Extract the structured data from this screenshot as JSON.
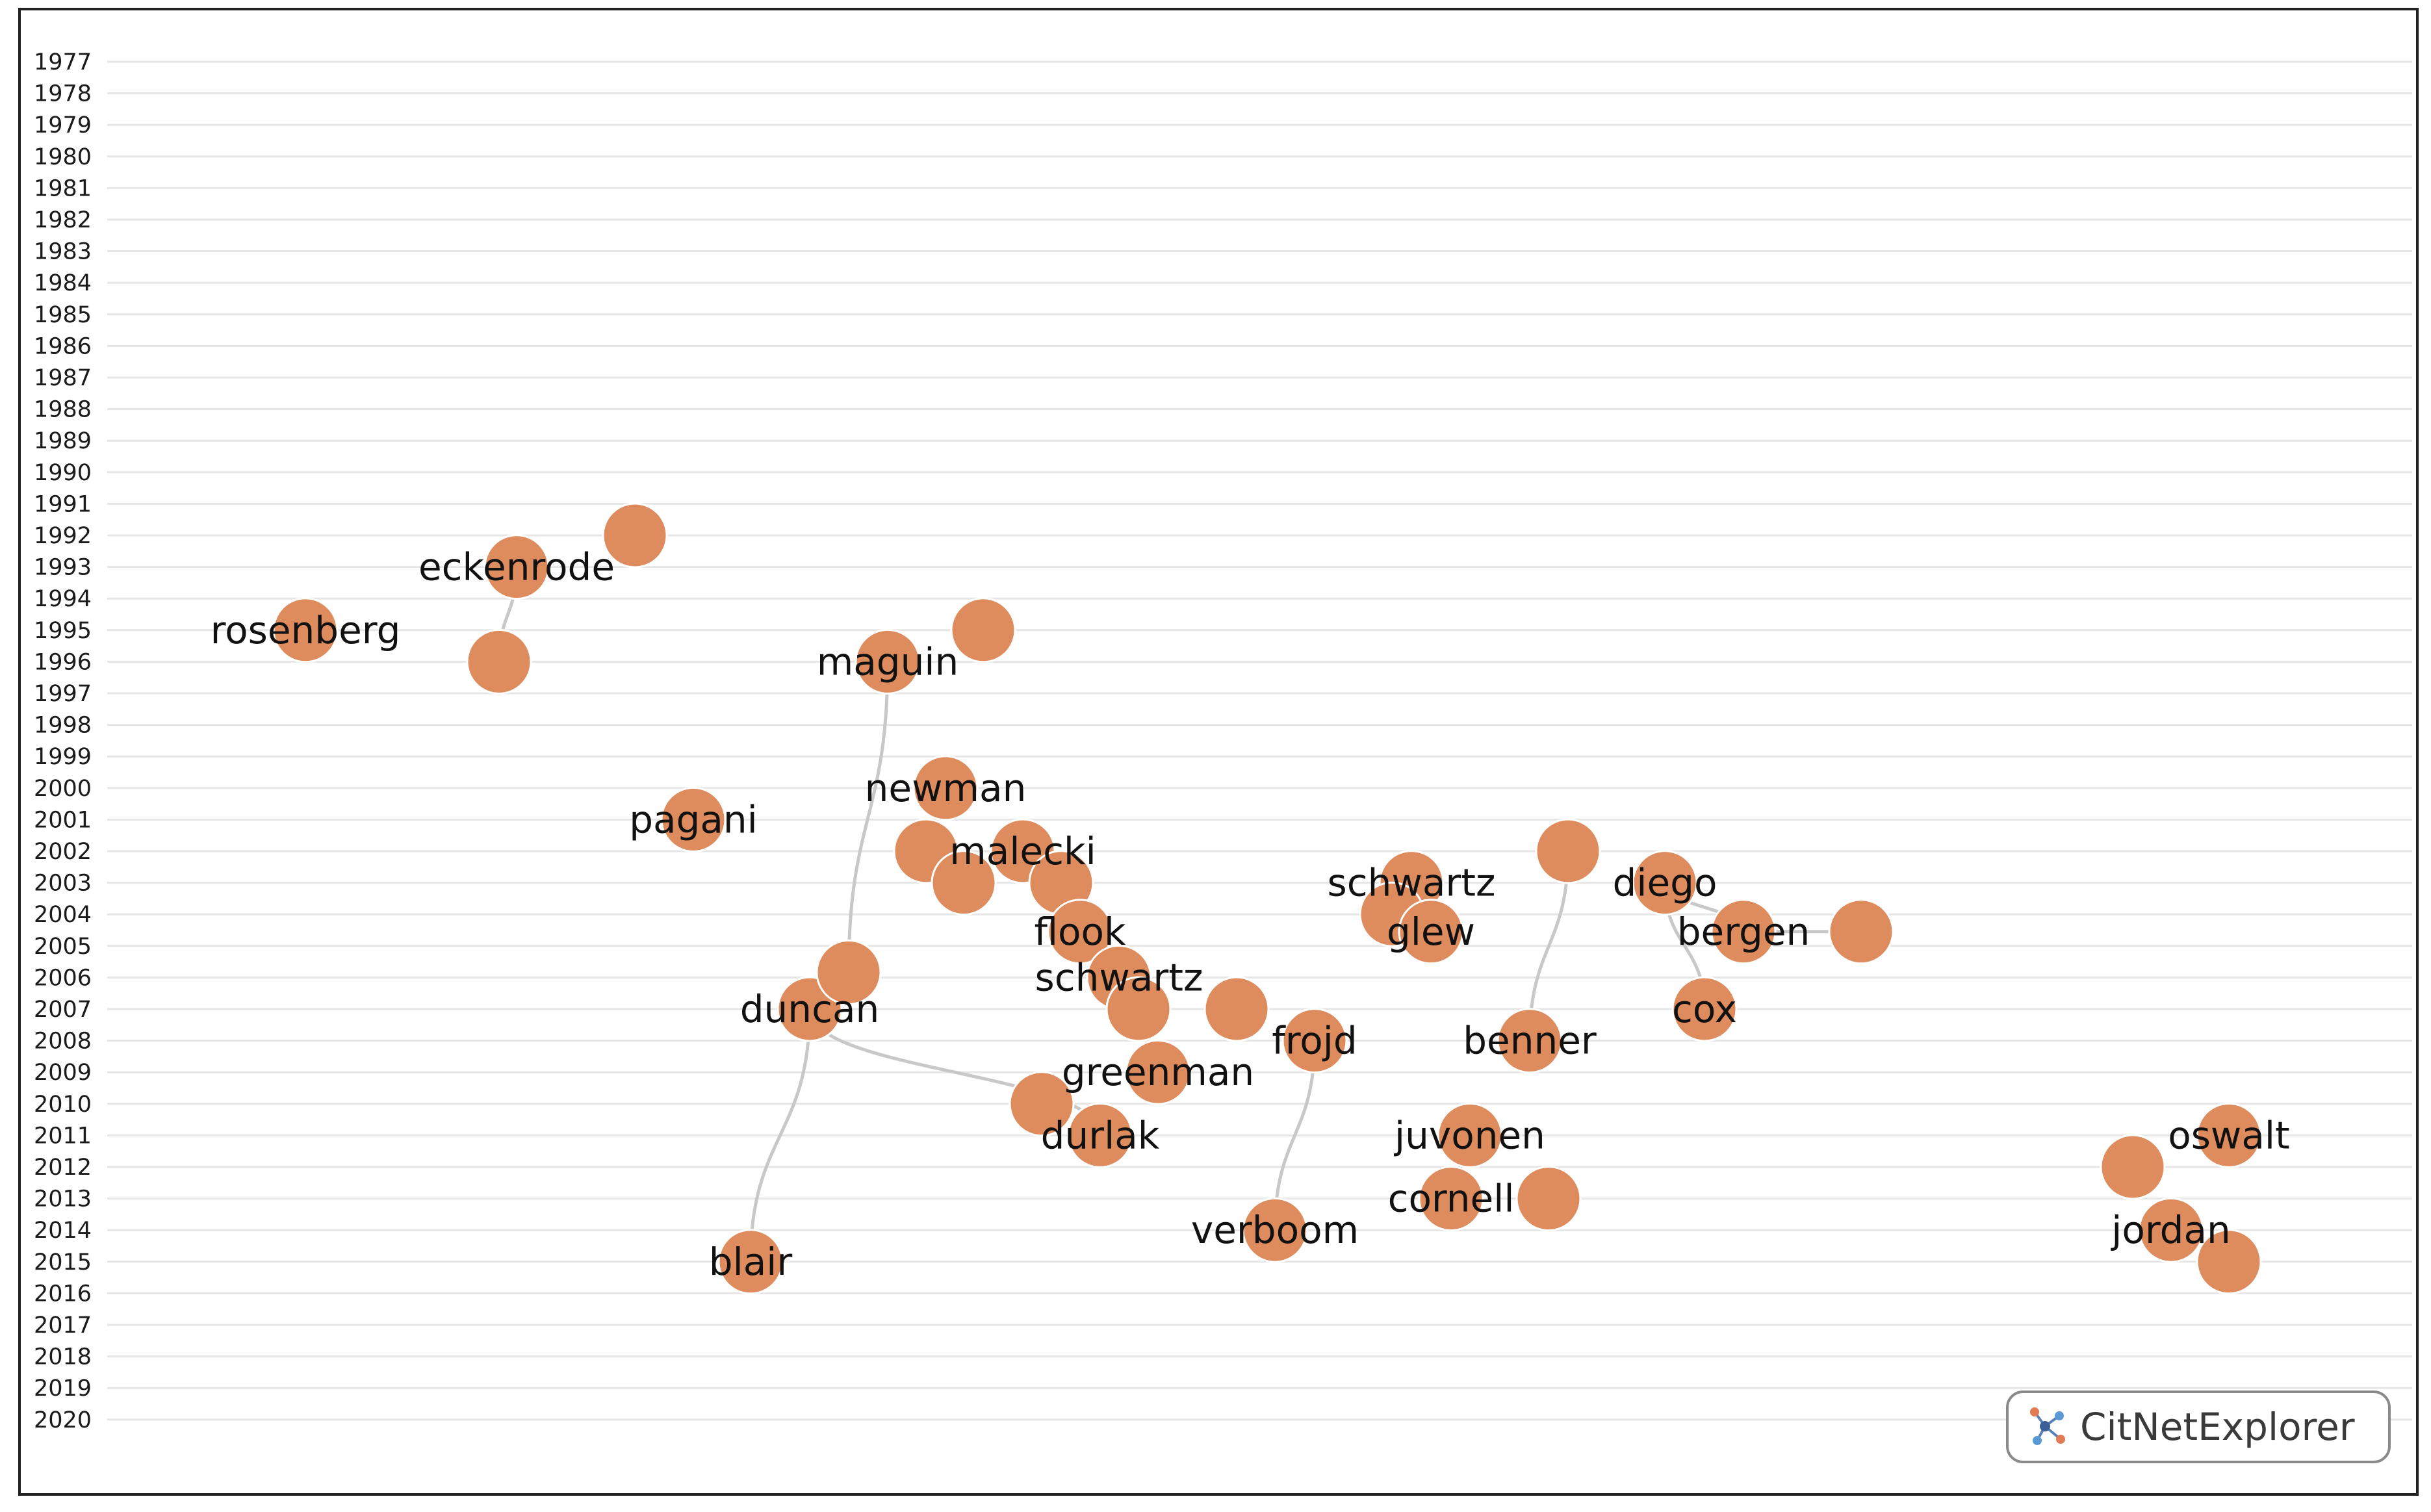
{
  "years": [
    "1977",
    "1978",
    "1979",
    "1980",
    "1981",
    "1982",
    "1983",
    "1984",
    "1985",
    "1986",
    "1987",
    "1988",
    "1989",
    "1990",
    "1991",
    "1992",
    "1993",
    "1994",
    "1995",
    "1996",
    "1997",
    "1998",
    "1999",
    "2000",
    "2001",
    "2002",
    "2003",
    "2004",
    "2005",
    "2006",
    "2007",
    "2008",
    "2009",
    "2010",
    "2011",
    "2012",
    "2013",
    "2014",
    "2015",
    "2016",
    "2017",
    "2018",
    "2019",
    "2020"
  ],
  "nodes": [
    {
      "id": "rosenberg",
      "label": "rosenberg",
      "year": 1995
    },
    {
      "id": "eckenrode",
      "label": "eckenrode",
      "year": 1993
    },
    {
      "id": "n-1992",
      "label": "",
      "year": 1992
    },
    {
      "id": "n-1996a",
      "label": "",
      "year": 1996
    },
    {
      "id": "maguin",
      "label": "maguin",
      "year": 1996
    },
    {
      "id": "n-1995b",
      "label": "",
      "year": 1995
    },
    {
      "id": "pagani",
      "label": "pagani",
      "year": 2001
    },
    {
      "id": "newman",
      "label": "newman",
      "year": 2000
    },
    {
      "id": "n-2002a",
      "label": "",
      "year": 2002
    },
    {
      "id": "malecki",
      "label": "malecki",
      "year": 2002
    },
    {
      "id": "n-2003a",
      "label": "",
      "year": 2003
    },
    {
      "id": "n-2003b",
      "label": "",
      "year": 2003
    },
    {
      "id": "flook",
      "label": "flook",
      "year": 2005
    },
    {
      "id": "schwartz-2006",
      "label": "schwartz",
      "year": 2006
    },
    {
      "id": "n-2007a",
      "label": "",
      "year": 2007
    },
    {
      "id": "n-2007b",
      "label": "",
      "year": 2007
    },
    {
      "id": "duncan",
      "label": "duncan",
      "year": 2007
    },
    {
      "id": "n-2006a",
      "label": "",
      "year": 2006
    },
    {
      "id": "greenman",
      "label": "greenman",
      "year": 2009
    },
    {
      "id": "n-2010a",
      "label": "",
      "year": 2010
    },
    {
      "id": "durlak",
      "label": "durlak",
      "year": 2011
    },
    {
      "id": "frojd",
      "label": "frojd",
      "year": 2008
    },
    {
      "id": "verboom",
      "label": "verboom",
      "year": 2014
    },
    {
      "id": "blair",
      "label": "blair",
      "year": 2015
    },
    {
      "id": "schwartz-2003",
      "label": "schwartz",
      "year": 2003
    },
    {
      "id": "n-2004a",
      "label": "",
      "year": 2004
    },
    {
      "id": "glew",
      "label": "glew",
      "year": 2005
    },
    {
      "id": "n-2002b",
      "label": "",
      "year": 2002
    },
    {
      "id": "benner",
      "label": "benner",
      "year": 2008
    },
    {
      "id": "juvonen",
      "label": "juvonen",
      "year": 2011
    },
    {
      "id": "cornell",
      "label": "cornell",
      "year": 2013
    },
    {
      "id": "n-2013a",
      "label": "",
      "year": 2013
    },
    {
      "id": "diego",
      "label": "diego",
      "year": 2003
    },
    {
      "id": "bergen",
      "label": "bergen",
      "year": 2005
    },
    {
      "id": "n-2005a",
      "label": "",
      "year": 2005
    },
    {
      "id": "cox",
      "label": "cox",
      "year": 2007
    },
    {
      "id": "oswalt",
      "label": "oswalt",
      "year": 2011
    },
    {
      "id": "n-2012a",
      "label": "",
      "year": 2012
    },
    {
      "id": "jordan",
      "label": "jordan",
      "year": 2014
    },
    {
      "id": "n-2015a",
      "label": "",
      "year": 2015
    }
  ],
  "edges": [
    [
      "eckenrode",
      "n-1996a"
    ],
    [
      "maguin",
      "n-2006a"
    ],
    [
      "duncan",
      "blair"
    ],
    [
      "duncan",
      "durlak"
    ],
    [
      "frojd",
      "verboom"
    ],
    [
      "n-2002b",
      "benner"
    ],
    [
      "juvonen",
      "cornell"
    ],
    [
      "diego",
      "cox"
    ],
    [
      "diego",
      "bergen"
    ],
    [
      "bergen",
      "n-2005a"
    ]
  ],
  "colors": {
    "node": "#de8c5e",
    "edge": "#c8c8c8",
    "grid": "#e6e6e6"
  },
  "logo": {
    "text": "CitNetExplorer",
    "icon": "citnet-network-icon"
  }
}
